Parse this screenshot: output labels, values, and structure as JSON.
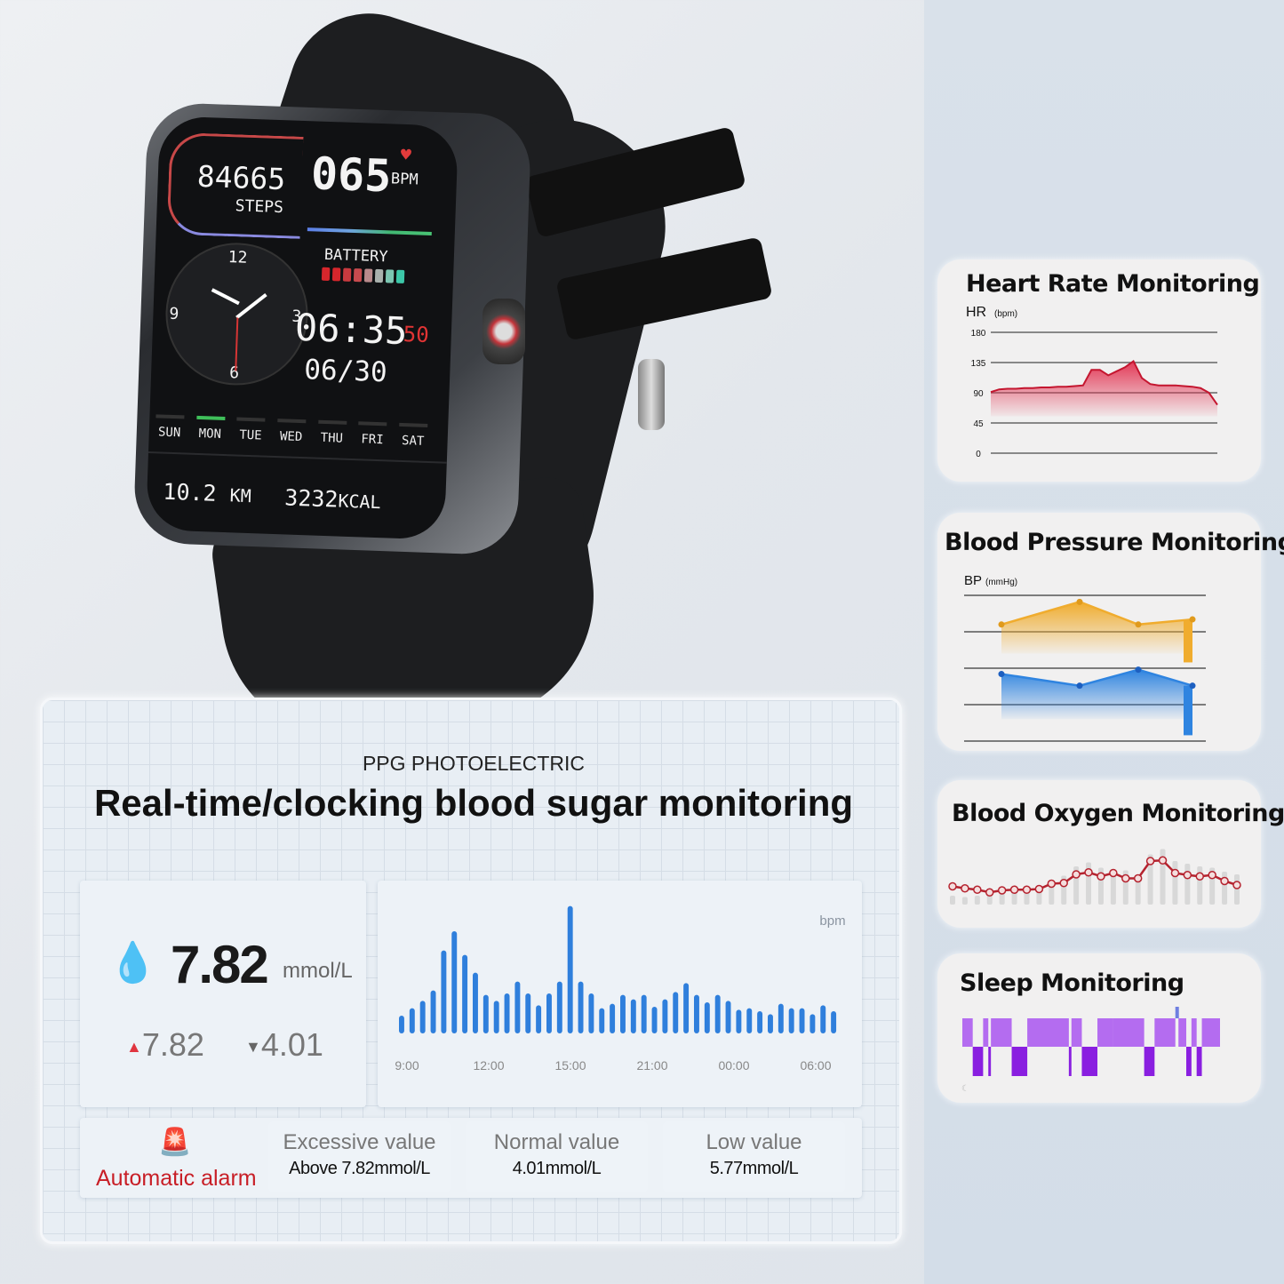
{
  "watch": {
    "steps": "84665",
    "steps_label": "STEPS",
    "heart_rate": "065",
    "heart_unit": "BPM",
    "battery_label": "BATTERY",
    "battery_segments": [
      "#d6262c",
      "#d6262c",
      "#c93a3f",
      "#c74a4e",
      "#b98a8c",
      "#a9b1ad",
      "#7cc6b2",
      "#3cc7a8"
    ],
    "dial_numbers": [
      "12",
      "3",
      "6",
      "9"
    ],
    "time": "06:35",
    "seconds": "50",
    "date": "06/30",
    "days": [
      "SUN",
      "MON",
      "TUE",
      "WED",
      "THU",
      "FRI",
      "SAT"
    ],
    "active_day": "MON",
    "distance": "10.2",
    "distance_unit": "KM",
    "calories": "3232",
    "calories_unit": "KCAL"
  },
  "main": {
    "kicker": "PPG PHOTOELECTRIC",
    "title": "Real-time/clocking blood sugar monitoring",
    "reading": {
      "value": "7.82",
      "unit": "mmol/L",
      "high": "7.82",
      "low": "4.01"
    },
    "alarm": {
      "label": "Automatic alarm",
      "items": [
        {
          "title": "Excessive value",
          "value": "Above 7.82mmol/L"
        },
        {
          "title": "Normal value",
          "value": "4.01mmol/L"
        },
        {
          "title": "Low value",
          "value": "5.77mmol/L"
        }
      ]
    }
  },
  "colors": {
    "accent_red": "#e0353f",
    "bar_blue": "#2f7fdc",
    "hr_red": "#e2304f",
    "bp_orange": "#f0ac2e",
    "bp_blue": "#2f84e0",
    "spo2_line": "#b5232f",
    "sleep_light": "#b46cf0",
    "sleep_deep": "#8a1fe0"
  },
  "cards": {
    "hr": "Heart Rate Monitoring",
    "bp": "Blood Pressure Monitoring",
    "spo2": "Blood Oxygen Monitoring",
    "sleep": "Sleep Monitoring"
  },
  "chart_data": [
    {
      "type": "bar",
      "unit": "bpm",
      "xticks": [
        "9:00",
        "12:00",
        "15:00",
        "21:00",
        "00:00",
        "06:00"
      ],
      "values": [
        12,
        17,
        22,
        29,
        56,
        69,
        53,
        41,
        26,
        22,
        27,
        35,
        27,
        19,
        27,
        35,
        86,
        35,
        27,
        17,
        20,
        26,
        23,
        26,
        18,
        23,
        28,
        34,
        26,
        21,
        26,
        22,
        16,
        17,
        15,
        13,
        20,
        17,
        17,
        13,
        19,
        15
      ]
    },
    {
      "type": "area",
      "title": "Heart Rate Monitoring",
      "ylabel": "HR",
      "yunit": "(bpm)",
      "yticks": [
        0,
        45,
        90,
        135,
        180
      ],
      "ylim": [
        0,
        180
      ],
      "grid": true,
      "values": [
        91,
        95,
        96,
        96,
        97,
        97,
        98,
        98,
        99,
        99,
        100,
        101,
        124,
        124,
        116,
        122,
        128,
        137,
        112,
        103,
        101,
        101,
        101,
        100,
        99,
        97,
        90,
        72
      ]
    },
    {
      "type": "area",
      "title": "Blood Pressure Monitoring",
      "ylabel": "BP",
      "yunit": "(mmHg)",
      "grid": true,
      "series": [
        {
          "values": [
            160,
            191,
            160,
            167
          ]
        },
        {
          "values": [
            92,
            76,
            98,
            76
          ]
        }
      ]
    },
    {
      "type": "line",
      "title": "Blood Oxygen Monitoring",
      "values": [
        30,
        27,
        25,
        21,
        24,
        25,
        25,
        26,
        34,
        35,
        48,
        51,
        45,
        50,
        42,
        42,
        68,
        69,
        50,
        47,
        45,
        47,
        38,
        32
      ],
      "background_bars": [
        8,
        6,
        8,
        10,
        12,
        14,
        16,
        18,
        30,
        38,
        52,
        58,
        50,
        48,
        46,
        40,
        70,
        78,
        60,
        56,
        52,
        50,
        44,
        40
      ]
    },
    {
      "type": "sleep",
      "title": "Sleep Monitoring",
      "segments": [
        [
          "light",
          2
        ],
        [
          "deep",
          2
        ],
        [
          "light",
          1
        ],
        [
          "deep",
          0.5
        ],
        [
          "light",
          4
        ],
        [
          "deep",
          3
        ],
        [
          "light",
          8
        ],
        [
          "deep",
          0.5
        ],
        [
          "light",
          2
        ],
        [
          "deep",
          3
        ],
        [
          "light",
          3
        ],
        [
          "light",
          6
        ],
        [
          "deep",
          2
        ],
        [
          "light",
          4
        ],
        [
          "awake",
          0.6
        ],
        [
          "light",
          1.5
        ],
        [
          "deep",
          1
        ],
        [
          "light",
          1
        ],
        [
          "deep",
          1
        ],
        [
          "light",
          3.5
        ]
      ]
    }
  ]
}
